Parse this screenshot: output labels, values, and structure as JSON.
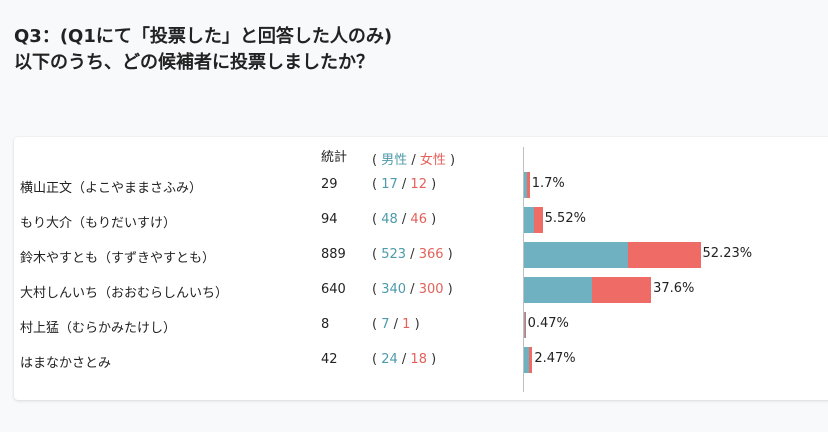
{
  "question": {
    "line1": "Q3：(Q1にて「投票した」と回答した人のみ)",
    "line2": "以下のうち、どの候補者に投票しましたか？"
  },
  "table": {
    "header_total": "統計",
    "header_open": "( ",
    "header_male": "男性",
    "header_sep": " / ",
    "header_female": "女性",
    "header_close": " )",
    "colors": {
      "male": "#6fb1c1",
      "female": "#ef6b66"
    },
    "rows": [
      {
        "name": "横山正文（よこやままさふみ）",
        "total": "29",
        "male": "17",
        "female": "12",
        "percent": "1.7%",
        "pct_value": 1.7
      },
      {
        "name": "もり大介（もりだいすけ）",
        "total": "94",
        "male": "48",
        "female": "46",
        "percent": "5.52%",
        "pct_value": 5.52
      },
      {
        "name": "鈴木やすとも（すずきやすとも）",
        "total": "889",
        "male": "523",
        "female": "366",
        "percent": "52.23%",
        "pct_value": 52.23
      },
      {
        "name": "大村しんいち（おおむらしんいち）",
        "total": "640",
        "male": "340",
        "female": "300",
        "percent": "37.6%",
        "pct_value": 37.6
      },
      {
        "name": "村上猛（むらかみたけし）",
        "total": "8",
        "male": "7",
        "female": "1",
        "percent": "0.47%",
        "pct_value": 0.47
      },
      {
        "name": "はまなかさとみ",
        "total": "42",
        "male": "24",
        "female": "18",
        "percent": "2.47%",
        "pct_value": 2.47
      }
    ]
  }
}
